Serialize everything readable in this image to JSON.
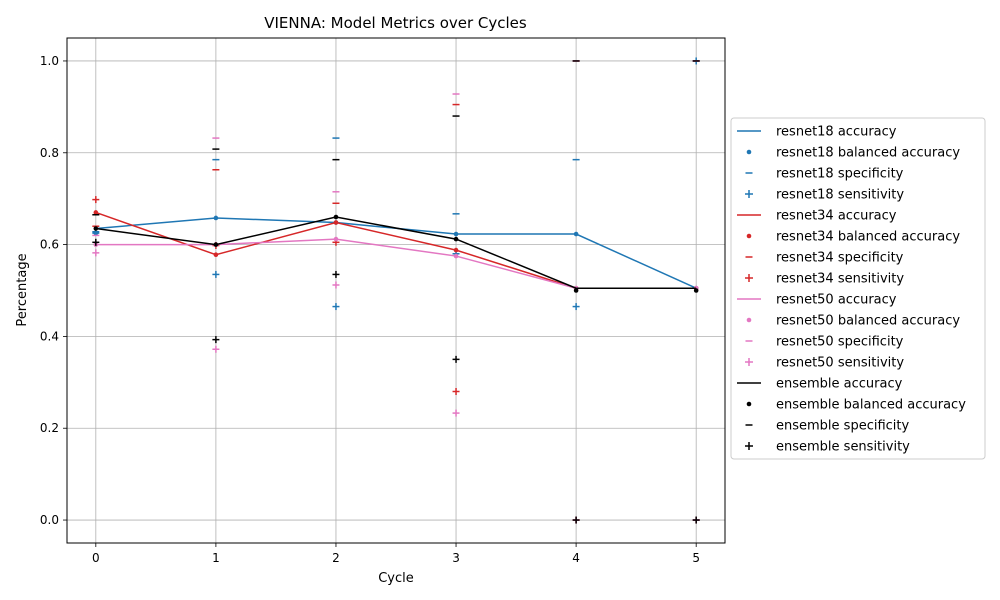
{
  "chart_data": {
    "type": "line",
    "title": "VIENNA: Model Metrics over Cycles",
    "xlabel": "Cycle",
    "ylabel": "Percentage",
    "x": [
      0,
      1,
      2,
      3,
      4,
      5
    ],
    "x_ticks": [
      "0",
      "1",
      "2",
      "3",
      "4",
      "5"
    ],
    "y_ticks": [
      "0.0",
      "0.2",
      "0.4",
      "0.6",
      "0.8",
      "1.0"
    ],
    "xlim": [
      -0.24,
      5.24
    ],
    "ylim": [
      -0.05,
      1.05
    ],
    "grid": true,
    "legend_position": "center-right-outside",
    "models": [
      {
        "name": "resnet18",
        "color": "#1f77b4",
        "accuracy": [
          0.635,
          0.658,
          0.648,
          0.623,
          0.623,
          0.505
        ],
        "balanced_accuracy": [
          0.625,
          0.658,
          0.648,
          0.623,
          0.623,
          0.505
        ],
        "specificity": [
          0.625,
          0.785,
          0.832,
          0.667,
          0.785,
          0.0
        ],
        "sensitivity": [
          0.628,
          0.535,
          0.465,
          0.58,
          0.465,
          1.0
        ]
      },
      {
        "name": "resnet34",
        "color": "#d62728",
        "accuracy": [
          0.67,
          0.578,
          0.648,
          0.588,
          0.505,
          0.505
        ],
        "balanced_accuracy": [
          0.67,
          0.578,
          0.648,
          0.588,
          0.505,
          0.505
        ],
        "specificity": [
          0.64,
          0.763,
          0.69,
          0.905,
          1.0,
          1.0
        ],
        "sensitivity": [
          0.698,
          0.598,
          0.605,
          0.28,
          0.0,
          0.0
        ]
      },
      {
        "name": "resnet50",
        "color": "#e377c2",
        "accuracy": [
          0.6,
          0.6,
          0.612,
          0.575,
          0.505,
          0.505
        ],
        "balanced_accuracy": [
          0.6,
          0.6,
          0.612,
          0.575,
          0.505,
          0.505
        ],
        "specificity": [
          0.62,
          0.832,
          0.715,
          0.928,
          1.0,
          1.0
        ],
        "sensitivity": [
          0.582,
          0.372,
          0.512,
          0.233,
          0.0,
          0.0
        ]
      },
      {
        "name": "ensemble",
        "color": "#000000",
        "accuracy": [
          0.635,
          0.6,
          0.66,
          0.612,
          0.505,
          0.505
        ],
        "balanced_accuracy": [
          0.635,
          0.6,
          0.66,
          0.612,
          0.5,
          0.5
        ],
        "specificity": [
          0.665,
          0.808,
          0.785,
          0.88,
          1.0,
          1.0
        ],
        "sensitivity": [
          0.605,
          0.393,
          0.535,
          0.35,
          0.0,
          0.0
        ]
      }
    ],
    "legend_entries": [
      {
        "label": "resnet18 accuracy",
        "kind": "line",
        "color": "#1f77b4"
      },
      {
        "label": "resnet18 balanced accuracy",
        "kind": "dot",
        "color": "#1f77b4"
      },
      {
        "label": "resnet18 specificity",
        "kind": "dash",
        "color": "#1f77b4"
      },
      {
        "label": "resnet18 sensitivity",
        "kind": "plus",
        "color": "#1f77b4"
      },
      {
        "label": "resnet34 accuracy",
        "kind": "line",
        "color": "#d62728"
      },
      {
        "label": "resnet34 balanced accuracy",
        "kind": "dot",
        "color": "#d62728"
      },
      {
        "label": "resnet34 specificity",
        "kind": "dash",
        "color": "#d62728"
      },
      {
        "label": "resnet34 sensitivity",
        "kind": "plus",
        "color": "#d62728"
      },
      {
        "label": "resnet50 accuracy",
        "kind": "line",
        "color": "#e377c2"
      },
      {
        "label": "resnet50 balanced accuracy",
        "kind": "dot",
        "color": "#e377c2"
      },
      {
        "label": "resnet50 specificity",
        "kind": "dash",
        "color": "#e377c2"
      },
      {
        "label": "resnet50 sensitivity",
        "kind": "plus",
        "color": "#e377c2"
      },
      {
        "label": "ensemble accuracy",
        "kind": "line",
        "color": "#000000"
      },
      {
        "label": "ensemble balanced accuracy",
        "kind": "dot",
        "color": "#000000"
      },
      {
        "label": "ensemble specificity",
        "kind": "dash",
        "color": "#000000"
      },
      {
        "label": "ensemble sensitivity",
        "kind": "plus",
        "color": "#000000"
      }
    ]
  }
}
